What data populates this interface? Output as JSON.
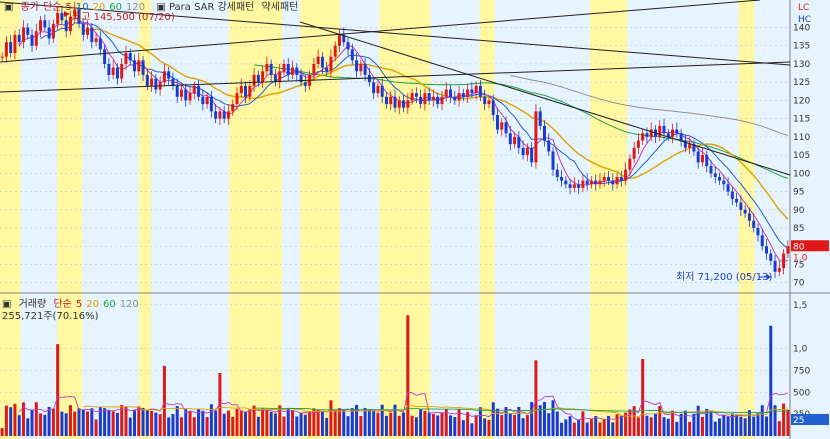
{
  "price_panel": {
    "legend_prefix": "▣",
    "legend_items": [
      {
        "label": "종가",
        "color": "#c02020"
      },
      {
        "label": "단순",
        "color": "#c02020"
      },
      {
        "label": "5",
        "color": "#c02020"
      },
      {
        "label": "10",
        "color": "#2060d0"
      },
      {
        "label": "20",
        "color": "#e0a000"
      },
      {
        "label": "60",
        "color": "#20a040"
      },
      {
        "label": "120",
        "color": "#909090"
      }
    ],
    "indicator_label": "▣ Para SAR 강세패턴",
    "bear_label": "약세패턴",
    "top_text": "최고 145,500 (07/20)",
    "low_text": "최저 71,200 (05/13)",
    "corner_labels": [
      "LC",
      "HC"
    ],
    "y_ticks": [
      "140",
      "135",
      "130",
      "125",
      "120",
      "115",
      "110",
      "105",
      "100",
      "95",
      "90",
      "85",
      "80",
      "75",
      "70"
    ],
    "current_price": "80",
    "current_sub": "1.0"
  },
  "volume_panel": {
    "legend_prefix": "▣",
    "title": "거래량",
    "ma_items": [
      {
        "label": "단순",
        "color": "#c02020"
      },
      {
        "label": "5",
        "color": "#c02020"
      },
      {
        "label": "20",
        "color": "#e0a000"
      },
      {
        "label": "60",
        "color": "#20a040"
      },
      {
        "label": "120",
        "color": "#909090"
      }
    ],
    "last_volume_text": "255,721주(70.16%)",
    "y_ticks": [
      "1,5",
      "1,0",
      "750",
      "500",
      "250"
    ],
    "current_badge": "25"
  },
  "colors": {
    "background": "#e6f4ff",
    "highlight": "#fff8a0",
    "up": "#e01818",
    "down": "#1a3ad0",
    "ma5": "#c03cc0",
    "ma10": "#2060d0",
    "ma20": "#e0a000",
    "ma60": "#20a040",
    "ma120": "#909090",
    "trendline": "#202020",
    "grid": "#b8c8d8"
  },
  "chart_data": {
    "type": "candlestick",
    "price_start": 132,
    "closes": [
      132,
      136,
      133,
      138,
      136,
      140,
      138,
      135,
      139,
      142,
      140,
      137,
      141,
      144,
      142,
      139,
      143,
      145,
      141,
      138,
      140,
      136,
      137,
      134,
      130,
      127,
      129,
      126,
      130,
      133,
      131,
      128,
      131,
      127,
      124,
      126,
      123,
      125,
      128,
      126,
      124,
      121,
      123,
      120,
      122,
      124,
      121,
      119,
      121,
      117,
      115,
      117,
      115,
      117,
      119,
      122,
      124,
      121,
      124,
      127,
      125,
      128,
      130,
      127,
      125,
      128,
      130,
      127,
      129,
      127,
      125,
      124,
      127,
      130,
      132,
      129,
      128,
      132,
      135,
      138,
      136,
      134,
      131,
      128,
      130,
      127,
      125,
      122,
      124,
      121,
      119,
      121,
      118,
      120,
      118,
      120,
      122,
      121,
      119,
      122,
      120,
      121,
      119,
      121,
      123,
      121,
      120,
      122,
      121,
      123,
      122,
      124,
      121,
      119,
      120,
      116,
      112,
      114,
      111,
      108,
      110,
      107,
      105,
      107,
      103,
      117,
      113,
      109,
      106,
      101,
      99,
      98,
      97,
      96,
      97,
      96,
      98,
      97,
      98,
      97,
      98,
      99,
      98,
      97,
      99,
      98,
      101,
      104,
      107,
      109,
      111,
      110,
      112,
      110,
      113,
      111,
      110,
      112,
      111,
      109,
      107,
      108,
      106,
      103,
      105,
      102,
      100,
      99,
      98,
      97,
      95,
      93,
      92,
      90,
      89,
      87,
      85,
      83,
      80,
      78,
      76,
      73,
      74,
      78,
      80
    ],
    "volume_ma_src": "computed",
    "y_range": [
      68,
      147
    ],
    "volume_range": [
      0,
      1600
    ],
    "highlight_bands": [
      [
        0,
        0.026
      ],
      [
        0.073,
        0.104
      ],
      [
        0.176,
        0.191
      ],
      [
        0.29,
        0.357
      ],
      [
        0.38,
        0.43
      ],
      [
        0.48,
        0.545
      ],
      [
        0.607,
        0.626
      ],
      [
        0.747,
        0.794
      ],
      [
        0.935,
        0.955
      ]
    ]
  }
}
